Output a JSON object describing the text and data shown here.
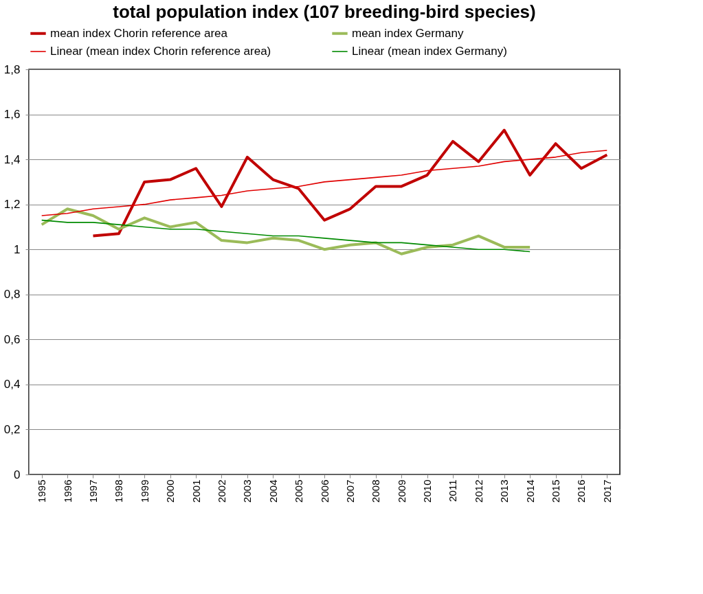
{
  "chart_data": {
    "type": "line",
    "title": "total population index (107 breeding-bird species)",
    "categories": [
      "1995",
      "1996",
      "1997",
      "1998",
      "1999",
      "2000",
      "2001",
      "2002",
      "2003",
      "2004",
      "2005",
      "2006",
      "2007",
      "2008",
      "2009",
      "2010",
      "2011",
      "2012",
      "2013",
      "2014",
      "2015",
      "2016",
      "2017"
    ],
    "series": [
      {
        "name": "mean index Chorin reference area",
        "color": "#c00000",
        "values": [
          null,
          null,
          1.06,
          1.07,
          1.3,
          1.31,
          1.36,
          1.19,
          1.41,
          1.31,
          1.27,
          1.13,
          1.18,
          1.28,
          1.28,
          1.33,
          1.48,
          1.39,
          1.53,
          1.33,
          1.47,
          1.36,
          1.42
        ]
      },
      {
        "name": "mean index Germany",
        "color": "#9bbb59",
        "values": [
          1.11,
          1.18,
          1.15,
          1.09,
          1.14,
          1.1,
          1.12,
          1.04,
          1.03,
          1.05,
          1.04,
          1.0,
          1.02,
          1.03,
          0.98,
          1.01,
          1.02,
          1.06,
          1.01,
          1.01,
          null,
          null,
          null
        ]
      },
      {
        "name": "Linear (mean index Chorin reference area)",
        "color": "#e00000",
        "type": "line",
        "values": [
          1.15,
          1.16,
          1.18,
          1.19,
          1.2,
          1.22,
          1.23,
          1.24,
          1.26,
          1.27,
          1.28,
          1.3,
          1.31,
          1.32,
          1.33,
          1.35,
          1.36,
          1.37,
          1.39,
          1.4,
          1.41,
          1.43,
          1.44
        ]
      },
      {
        "name": "Linear (mean index Germany)",
        "color": "#008a00",
        "type": "line",
        "values": [
          1.13,
          1.12,
          1.12,
          1.11,
          1.1,
          1.09,
          1.09,
          1.08,
          1.07,
          1.06,
          1.06,
          1.05,
          1.04,
          1.03,
          1.03,
          1.02,
          1.01,
          1.0,
          1.0,
          0.99,
          null,
          null,
          null
        ]
      }
    ],
    "ylim": [
      0,
      1.8
    ],
    "yticks": [
      {
        "value": 0,
        "label": "0"
      },
      {
        "value": 0.2,
        "label": "0,2"
      },
      {
        "value": 0.4,
        "label": "0,4"
      },
      {
        "value": 0.6,
        "label": "0,6"
      },
      {
        "value": 0.8,
        "label": "0,8"
      },
      {
        "value": 1,
        "label": "1"
      },
      {
        "value": 1.2,
        "label": "1,2"
      },
      {
        "value": 1.4,
        "label": "1,4"
      },
      {
        "value": 1.6,
        "label": "1,6"
      },
      {
        "value": 1.8,
        "label": "1,8"
      }
    ],
    "grid": "y",
    "legend": "top",
    "marker": "none",
    "line_style": "solid"
  }
}
